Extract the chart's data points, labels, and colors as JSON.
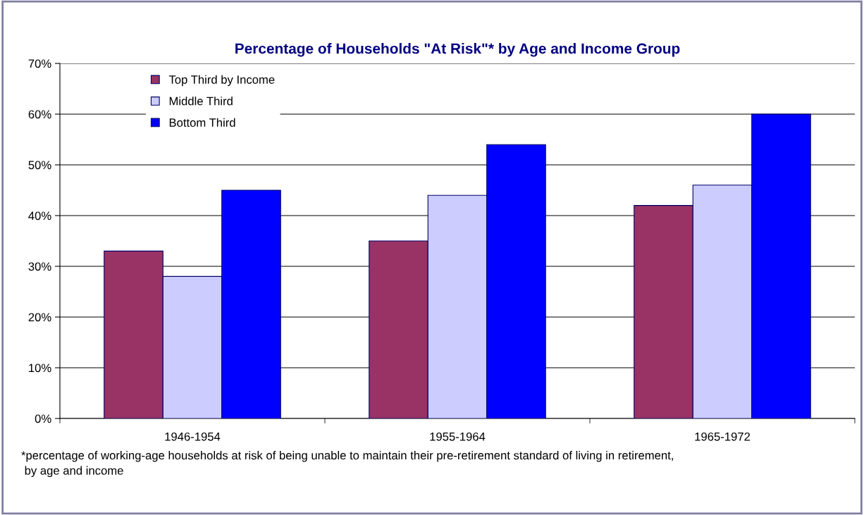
{
  "chart_data": {
    "type": "bar",
    "title": "Percentage of Households \"At Risk\"* by Age and Income Group",
    "categories": [
      "1946-1954",
      "1955-1964",
      "1965-1972"
    ],
    "series": [
      {
        "name": "Top Third by Income",
        "color": "#993366",
        "values": [
          33,
          35,
          42
        ]
      },
      {
        "name": "Middle Third",
        "color": "#ccccff",
        "values": [
          28,
          44,
          46
        ]
      },
      {
        "name": "Bottom Third",
        "color": "#0000ff",
        "values": [
          45,
          54,
          60
        ]
      }
    ],
    "ylim": [
      0,
      70
    ],
    "yticks": [
      {
        "value": 0,
        "label": "0%"
      },
      {
        "value": 10,
        "label": "10%"
      },
      {
        "value": 20,
        "label": "20%"
      },
      {
        "value": 30,
        "label": "30%"
      },
      {
        "value": 40,
        "label": "40%"
      },
      {
        "value": 50,
        "label": "50%"
      },
      {
        "value": 60,
        "label": "60%"
      },
      {
        "value": 70,
        "label": "70%"
      }
    ],
    "grid": "y",
    "legend": "top left",
    "annotations": [
      "*percentage of working-age households at risk of being unable to maintain their pre-retirement standard of living in retirement,\n by age and income"
    ]
  }
}
